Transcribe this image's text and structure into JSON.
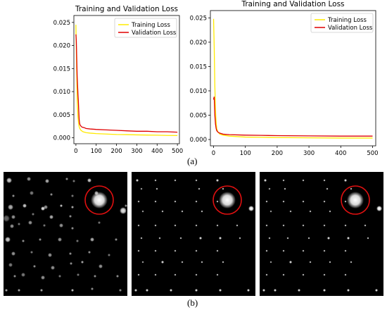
{
  "figure": {
    "label_a": "(a)",
    "label_b": "(b)"
  },
  "chart_data": [
    {
      "type": "line",
      "title": "Training and Validation Loss",
      "xlabel": "",
      "ylabel": "",
      "xlim": [
        -10,
        510
      ],
      "ylim": [
        -0.0013,
        0.0265
      ],
      "xticks": [
        0,
        100,
        200,
        300,
        400,
        500
      ],
      "yticks": [
        0.0,
        0.005,
        0.01,
        0.015,
        0.02,
        0.025
      ],
      "ytick_labels": [
        "0.000",
        "0.005",
        "0.010",
        "0.015",
        "0.020",
        "0.025"
      ],
      "legend": "top-right",
      "grid": false,
      "series": [
        {
          "name": "Training Loss",
          "color": "#ffea00",
          "x": [
            0,
            3,
            6,
            10,
            14,
            18,
            25,
            35,
            50,
            70,
            100,
            150,
            200,
            250,
            300,
            350,
            400,
            450,
            500
          ],
          "values": [
            0.0245,
            0.0165,
            0.0085,
            0.0045,
            0.0028,
            0.0021,
            0.0016,
            0.0013,
            0.0011,
            0.001,
            0.0009,
            0.0008,
            0.0007,
            0.00068,
            0.00062,
            0.00058,
            0.00055,
            0.0005,
            0.00048
          ]
        },
        {
          "name": "Validation Loss",
          "color": "#e00000",
          "x": [
            0,
            2,
            4,
            6,
            8,
            10,
            12,
            14,
            16,
            18,
            20,
            25,
            30,
            40,
            50,
            70,
            100,
            150,
            200,
            250,
            300,
            350,
            400,
            450,
            500
          ],
          "values": [
            0.0224,
            0.021,
            0.0172,
            0.0135,
            0.0115,
            0.0095,
            0.008,
            0.0058,
            0.004,
            0.0032,
            0.0028,
            0.0025,
            0.0023,
            0.0022,
            0.002,
            0.0019,
            0.0018,
            0.0017,
            0.0016,
            0.0015,
            0.0014,
            0.0014,
            0.0013,
            0.0013,
            0.0012
          ]
        }
      ]
    },
    {
      "type": "line",
      "title": "Training and Validation Loss",
      "xlabel": "",
      "ylabel": "",
      "xlim": [
        -10,
        510
      ],
      "ylim": [
        -0.0013,
        0.0265
      ],
      "xticks": [
        0,
        100,
        200,
        300,
        400,
        500
      ],
      "yticks": [
        0.0,
        0.005,
        0.01,
        0.015,
        0.02,
        0.025
      ],
      "ytick_labels": [
        "0.000",
        "0.005",
        "0.010",
        "0.015",
        "0.020",
        "0.025"
      ],
      "legend": "top-right",
      "grid": false,
      "series": [
        {
          "name": "Training Loss",
          "color": "#ffea00",
          "x": [
            0,
            2,
            4,
            6,
            8,
            10,
            14,
            20,
            30,
            50,
            100,
            150,
            200,
            300,
            400,
            500
          ],
          "values": [
            0.0248,
            0.019,
            0.011,
            0.006,
            0.0035,
            0.0022,
            0.0015,
            0.0011,
            0.0009,
            0.0007,
            0.0005,
            0.00045,
            0.0004,
            0.00035,
            0.0003,
            0.0003
          ]
        },
        {
          "name": "Validation Loss",
          "color": "#e00000",
          "x": [
            0,
            2,
            4,
            6,
            8,
            10,
            14,
            20,
            30,
            50,
            100,
            150,
            200,
            300,
            400,
            500
          ],
          "values": [
            0.0082,
            0.0088,
            0.005,
            0.0032,
            0.0023,
            0.0018,
            0.0015,
            0.0013,
            0.0011,
            0.001,
            0.0009,
            0.00085,
            0.0008,
            0.00075,
            0.0007,
            0.0007
          ]
        }
      ]
    }
  ],
  "spot_panels": [
    {
      "name": "spots-1",
      "highlight_color": "#e01010",
      "spots": [
        [
          8,
          12,
          4,
          0.8
        ],
        [
          36,
          10,
          3,
          0.6
        ],
        [
          62,
          13,
          3,
          0.7
        ],
        [
          90,
          10,
          2,
          0.6
        ],
        [
          100,
          13,
          2,
          0.5
        ],
        [
          122,
          12,
          3,
          0.8
        ],
        [
          14,
          34,
          2,
          0.6
        ],
        [
          40,
          30,
          3,
          0.5
        ],
        [
          68,
          32,
          2,
          0.6
        ],
        [
          98,
          34,
          2,
          0.5
        ],
        [
          132,
          30,
          3,
          0.7
        ],
        [
          10,
          50,
          4,
          0.7
        ],
        [
          30,
          48,
          3,
          0.8
        ],
        [
          56,
          52,
          3,
          0.9
        ],
        [
          60,
          50,
          3,
          0.6
        ],
        [
          82,
          48,
          2,
          0.8
        ],
        [
          98,
          50,
          2,
          0.7
        ],
        [
          14,
          64,
          3,
          0.6
        ],
        [
          42,
          60,
          2,
          0.5
        ],
        [
          68,
          64,
          3,
          0.7
        ],
        [
          95,
          63,
          2,
          0.6
        ],
        [
          12,
          77,
          3,
          0.6
        ],
        [
          22,
          74,
          2,
          0.5
        ],
        [
          38,
          72,
          3,
          0.6
        ],
        [
          58,
          76,
          2,
          0.5
        ],
        [
          82,
          76,
          3,
          0.6
        ],
        [
          98,
          80,
          2,
          0.6
        ],
        [
          136,
          72,
          2,
          0.5
        ],
        [
          4,
          66,
          5,
          0.4
        ],
        [
          170,
          55,
          5,
          0.9
        ],
        [
          174,
          48,
          2,
          0.6
        ],
        [
          6,
          96,
          4,
          0.8
        ],
        [
          28,
          98,
          2,
          0.6
        ],
        [
          52,
          96,
          2,
          0.6
        ],
        [
          80,
          96,
          3,
          0.6
        ],
        [
          105,
          98,
          2,
          0.5
        ],
        [
          126,
          96,
          3,
          0.7
        ],
        [
          160,
          96,
          2,
          0.6
        ],
        [
          14,
          116,
          3,
          0.6
        ],
        [
          40,
          114,
          2,
          0.5
        ],
        [
          66,
          118,
          3,
          0.6
        ],
        [
          95,
          116,
          2,
          0.6
        ],
        [
          122,
          114,
          2,
          0.6
        ],
        [
          150,
          118,
          2,
          0.5
        ],
        [
          10,
          132,
          3,
          0.5
        ],
        [
          44,
          134,
          2,
          0.6
        ],
        [
          70,
          136,
          3,
          0.6
        ],
        [
          96,
          130,
          2,
          0.6
        ],
        [
          112,
          128,
          2,
          0.7
        ],
        [
          138,
          134,
          3,
          0.6
        ],
        [
          16,
          148,
          2,
          0.6
        ],
        [
          28,
          146,
          3,
          0.5
        ],
        [
          56,
          150,
          3,
          0.6
        ],
        [
          80,
          148,
          2,
          0.5
        ],
        [
          106,
          146,
          2,
          0.5
        ],
        [
          130,
          148,
          2,
          0.6
        ],
        [
          162,
          148,
          2,
          0.6
        ],
        [
          4,
          168,
          2,
          0.7
        ],
        [
          22,
          168,
          2,
          0.7
        ],
        [
          54,
          168,
          2,
          0.7
        ],
        [
          98,
          168,
          2,
          0.8
        ],
        [
          126,
          166,
          2,
          0.6
        ],
        [
          166,
          168,
          2,
          0.6
        ]
      ],
      "big_spot": [
        136,
        40,
        12
      ],
      "ring": [
        136,
        40,
        20
      ]
    },
    {
      "name": "spots-2",
      "highlight_color": "#e01010",
      "spots": [
        [
          8,
          12,
          2,
          0.9
        ],
        [
          34,
          12,
          1.5,
          0.8
        ],
        [
          62,
          12,
          1.5,
          0.8
        ],
        [
          92,
          12,
          1.5,
          0.8
        ],
        [
          122,
          12,
          2,
          0.9
        ],
        [
          14,
          24,
          1.5,
          0.7
        ],
        [
          36,
          24,
          1.5,
          0.8
        ],
        [
          96,
          24,
          1.5,
          0.8
        ],
        [
          130,
          24,
          1.5,
          0.8
        ],
        [
          10,
          42,
          1.5,
          0.8
        ],
        [
          34,
          42,
          1.5,
          0.8
        ],
        [
          62,
          42,
          1.5,
          0.8
        ],
        [
          92,
          42,
          1.5,
          0.8
        ],
        [
          122,
          42,
          1.5,
          0.8
        ],
        [
          16,
          56,
          1.5,
          0.7
        ],
        [
          44,
          56,
          1.5,
          0.8
        ],
        [
          72,
          56,
          1.5,
          0.8
        ],
        [
          100,
          56,
          1.5,
          0.8
        ],
        [
          170,
          52,
          4,
          1
        ],
        [
          10,
          76,
          1.5,
          0.8
        ],
        [
          34,
          76,
          1.5,
          0.8
        ],
        [
          62,
          76,
          1.5,
          0.8
        ],
        [
          92,
          76,
          1.5,
          0.8
        ],
        [
          122,
          76,
          1.5,
          0.8
        ],
        [
          150,
          76,
          1.5,
          0.8
        ],
        [
          14,
          94,
          1.5,
          0.8
        ],
        [
          40,
          94,
          1.5,
          0.8
        ],
        [
          70,
          94,
          1.5,
          0.8
        ],
        [
          98,
          94,
          2,
          0.9
        ],
        [
          126,
          94,
          2,
          0.9
        ],
        [
          154,
          94,
          1.5,
          0.8
        ],
        [
          10,
          112,
          1.5,
          0.8
        ],
        [
          34,
          112,
          1.5,
          0.8
        ],
        [
          62,
          112,
          1.5,
          0.8
        ],
        [
          92,
          112,
          1.5,
          0.8
        ],
        [
          122,
          112,
          1.5,
          0.8
        ],
        [
          16,
          128,
          1.5,
          0.7
        ],
        [
          44,
          128,
          2,
          0.9
        ],
        [
          72,
          128,
          1.5,
          0.8
        ],
        [
          100,
          128,
          1.5,
          0.8
        ],
        [
          130,
          128,
          1.5,
          0.8
        ],
        [
          10,
          146,
          1.5,
          0.8
        ],
        [
          34,
          146,
          1.5,
          0.8
        ],
        [
          62,
          146,
          1.5,
          0.8
        ],
        [
          92,
          146,
          1.5,
          0.8
        ],
        [
          122,
          146,
          1.5,
          0.8
        ],
        [
          6,
          168,
          2,
          0.9
        ],
        [
          22,
          168,
          2,
          0.9
        ],
        [
          56,
          168,
          2,
          0.9
        ],
        [
          92,
          168,
          2,
          0.9
        ],
        [
          126,
          168,
          2,
          0.9
        ],
        [
          166,
          168,
          2,
          0.9
        ]
      ],
      "big_spot": [
        136,
        40,
        12
      ],
      "ring": [
        136,
        40,
        20
      ]
    },
    {
      "name": "spots-3",
      "highlight_color": "#e01010",
      "spots": [
        [
          8,
          12,
          2,
          0.9
        ],
        [
          34,
          12,
          1.5,
          0.8
        ],
        [
          62,
          12,
          1.5,
          0.8
        ],
        [
          92,
          12,
          1.5,
          0.8
        ],
        [
          122,
          12,
          2,
          0.9
        ],
        [
          14,
          24,
          1.5,
          0.7
        ],
        [
          36,
          24,
          1.5,
          0.8
        ],
        [
          96,
          24,
          1.5,
          0.8
        ],
        [
          130,
          24,
          1.5,
          0.8
        ],
        [
          10,
          42,
          1.5,
          0.8
        ],
        [
          34,
          42,
          1.5,
          0.8
        ],
        [
          62,
          42,
          1.5,
          0.8
        ],
        [
          92,
          42,
          1.5,
          0.8
        ],
        [
          122,
          42,
          1.5,
          0.8
        ],
        [
          16,
          56,
          1.5,
          0.7
        ],
        [
          44,
          56,
          1.5,
          0.8
        ],
        [
          72,
          56,
          1.5,
          0.8
        ],
        [
          100,
          56,
          1.5,
          0.8
        ],
        [
          170,
          52,
          4,
          1
        ],
        [
          10,
          76,
          1.5,
          0.8
        ],
        [
          34,
          76,
          1.5,
          0.8
        ],
        [
          62,
          76,
          1.5,
          0.8
        ],
        [
          92,
          76,
          1.5,
          0.8
        ],
        [
          122,
          76,
          1.5,
          0.8
        ],
        [
          150,
          76,
          1.5,
          0.8
        ],
        [
          14,
          94,
          1.5,
          0.8
        ],
        [
          40,
          94,
          1.5,
          0.8
        ],
        [
          70,
          94,
          1.5,
          0.8
        ],
        [
          98,
          94,
          2,
          0.9
        ],
        [
          126,
          94,
          2,
          0.9
        ],
        [
          154,
          94,
          1.5,
          0.8
        ],
        [
          10,
          112,
          1.5,
          0.8
        ],
        [
          34,
          112,
          1.5,
          0.8
        ],
        [
          62,
          112,
          1.5,
          0.8
        ],
        [
          92,
          112,
          1.5,
          0.8
        ],
        [
          122,
          112,
          1.5,
          0.8
        ],
        [
          16,
          128,
          1.5,
          0.7
        ],
        [
          44,
          128,
          2,
          0.9
        ],
        [
          72,
          128,
          1.5,
          0.8
        ],
        [
          100,
          128,
          1.5,
          0.8
        ],
        [
          130,
          128,
          1.5,
          0.8
        ],
        [
          10,
          146,
          1.5,
          0.8
        ],
        [
          34,
          146,
          1.5,
          0.8
        ],
        [
          62,
          146,
          1.5,
          0.8
        ],
        [
          92,
          146,
          1.5,
          0.8
        ],
        [
          122,
          146,
          1.5,
          0.8
        ],
        [
          6,
          168,
          2,
          0.9
        ],
        [
          22,
          168,
          2,
          0.9
        ],
        [
          56,
          168,
          2,
          0.9
        ],
        [
          92,
          168,
          2,
          0.9
        ],
        [
          126,
          168,
          2,
          0.9
        ],
        [
          166,
          168,
          2,
          0.9
        ]
      ],
      "big_spot": [
        136,
        40,
        12
      ],
      "ring": [
        136,
        40,
        20
      ]
    }
  ]
}
